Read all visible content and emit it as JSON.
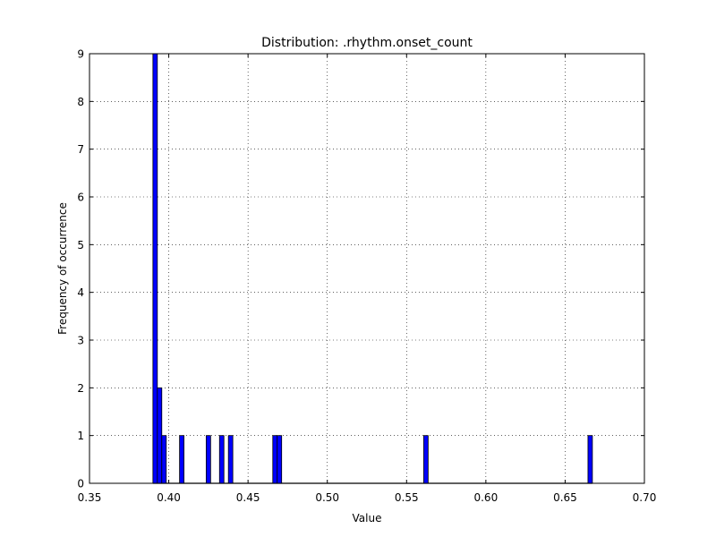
{
  "chart_data": {
    "type": "bar",
    "title": "Distribution: .rhythm.onset_count",
    "xlabel": "Value",
    "ylabel": "Frequency of occurrence",
    "xlim": [
      0.35,
      0.7
    ],
    "ylim": [
      0,
      9
    ],
    "xticks": [
      "0.35",
      "0.40",
      "0.45",
      "0.50",
      "0.55",
      "0.60",
      "0.65",
      "0.70"
    ],
    "yticks": [
      "0",
      "1",
      "2",
      "3",
      "4",
      "5",
      "6",
      "7",
      "8",
      "9"
    ],
    "grid": true,
    "bin_width": 0.0028,
    "bins": [
      {
        "x": 0.39,
        "value": 9
      },
      {
        "x": 0.3928,
        "value": 2
      },
      {
        "x": 0.3956,
        "value": 1
      },
      {
        "x": 0.4068,
        "value": 1
      },
      {
        "x": 0.4236,
        "value": 1
      },
      {
        "x": 0.432,
        "value": 1
      },
      {
        "x": 0.4376,
        "value": 1
      },
      {
        "x": 0.4656,
        "value": 1
      },
      {
        "x": 0.4684,
        "value": 1
      },
      {
        "x": 0.5608,
        "value": 1
      },
      {
        "x": 0.6644,
        "value": 1
      }
    ],
    "bar_color": "#0000ff",
    "bar_edge_color": "#000000"
  }
}
